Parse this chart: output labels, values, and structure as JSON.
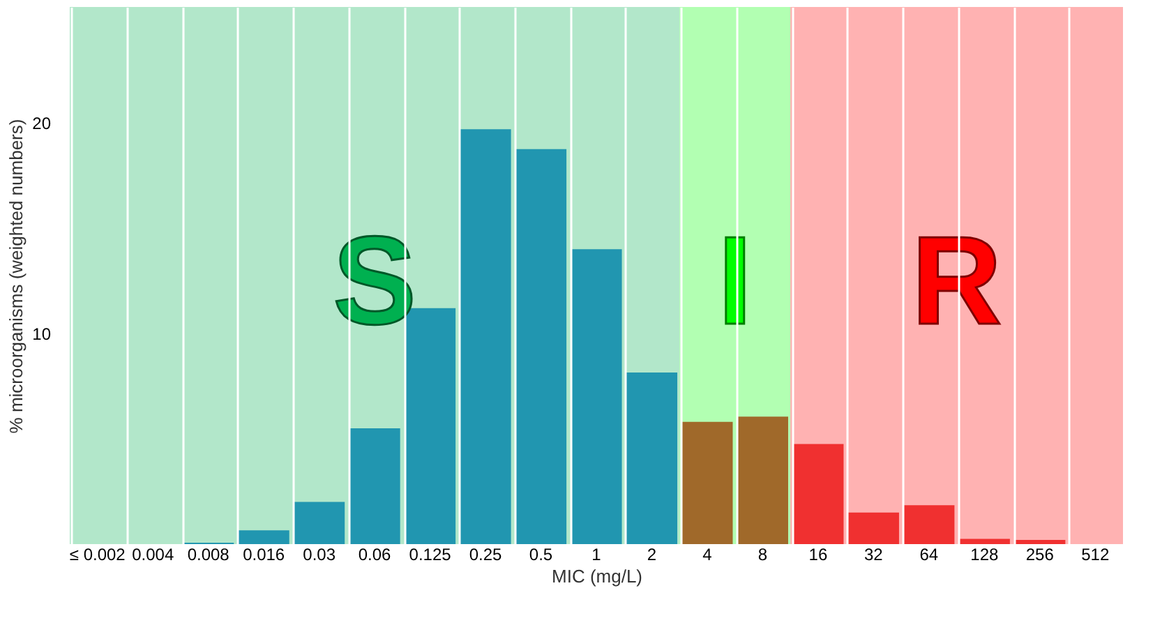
{
  "chart_data": {
    "type": "bar",
    "xlabel": "MIC (mg/L)",
    "ylabel": "% microorganisms (weighted numbers)",
    "categories": [
      "≤ 0.002",
      "0.004",
      "0.008",
      "0.016",
      "0.03",
      "0.06",
      "0.125",
      "0.25",
      "0.5",
      "1",
      "2",
      "4",
      "8",
      "16",
      "32",
      "64",
      "128",
      "256",
      "512"
    ],
    "values": [
      0,
      0,
      0.07,
      0.65,
      2.0,
      5.5,
      11.2,
      19.7,
      18.75,
      14.0,
      8.15,
      5.8,
      6.05,
      4.75,
      1.5,
      1.85,
      0.25,
      0.2,
      0.0
    ],
    "colors": [
      "#2196b0",
      "#2196b0",
      "#2196b0",
      "#2196b0",
      "#2196b0",
      "#2196b0",
      "#2196b0",
      "#2196b0",
      "#2196b0",
      "#2196b0",
      "#2196b0",
      "#a0692a",
      "#a0692a",
      "#f03030",
      "#f03030",
      "#f03030",
      "#f03030",
      "#f03030",
      "#f03030"
    ],
    "ylim": [
      0,
      25.5
    ],
    "yticks": [
      10,
      20
    ],
    "grid": "x",
    "legend": false,
    "bands": [
      {
        "axis": "x",
        "from": "≤ 0.002",
        "to": "2",
        "label": "S",
        "color": "#00b050"
      },
      {
        "axis": "x",
        "from": "4",
        "to": "8",
        "label": "I",
        "color": "#00ff00"
      },
      {
        "axis": "x",
        "from": "16",
        "to": "512",
        "label": "R",
        "color": "#ff0000"
      }
    ]
  }
}
